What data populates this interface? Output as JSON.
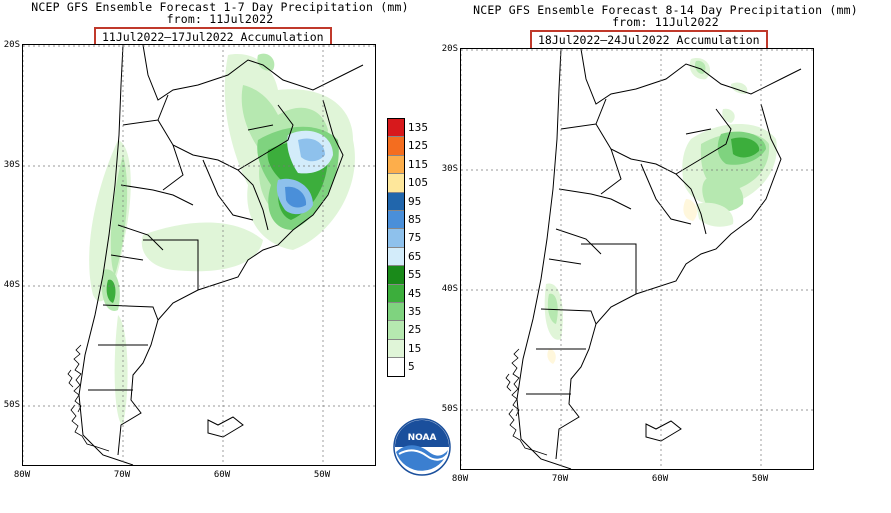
{
  "panel_left": {
    "title": "NCEP GFS Ensemble Forecast 1-7 Day Precipitation (mm)",
    "from": "from: 11Jul2022",
    "accumulation": "11Jul2022–17Jul2022 Accumulation"
  },
  "panel_right": {
    "title": "NCEP GFS Ensemble Forecast 8-14 Day Precipitation (mm)",
    "from": "from: 11Jul2022",
    "accumulation": "18Jul2022–24Jul2022 Accumulation"
  },
  "lat_labels": [
    "20S",
    "30S",
    "40S",
    "50S"
  ],
  "lon_labels": [
    "80W",
    "70W",
    "60W",
    "50W"
  ],
  "legend": {
    "values": [
      "135",
      "125",
      "115",
      "105",
      "95",
      "85",
      "75",
      "65",
      "55",
      "45",
      "35",
      "25",
      "15",
      "5"
    ],
    "colors": [
      "#d7191c",
      "#f46d1f",
      "#fdae4b",
      "#fee79b",
      "#2166ac",
      "#4a8fd9",
      "#8ec1ec",
      "#d3ecfa",
      "#1a8a1a",
      "#3cae3c",
      "#7fd37f",
      "#b6e8b0",
      "#e0f5d8",
      "#ffffff"
    ]
  },
  "logo": {
    "text": "NOAA",
    "icon": "noaa-logo-icon"
  }
}
